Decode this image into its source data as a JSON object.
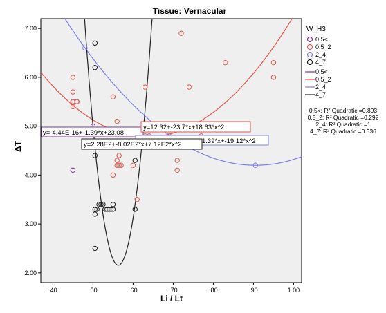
{
  "chart_data": {
    "type": "scatter",
    "title": "Tissue: Vernacular",
    "xlabel": "Li / Lt",
    "ylabel": "ΔT",
    "xlim": [
      0.37,
      1.02
    ],
    "ylim": [
      1.8,
      7.2
    ],
    "x_ticks": [
      ".40",
      ".50",
      ".60",
      ".70",
      ".80",
      ".90",
      "1.00"
    ],
    "y_ticks": [
      "2.00",
      "3.00",
      "4.00",
      "5.00",
      "6.00",
      "7.00"
    ],
    "x_tick_values": [
      0.4,
      0.5,
      0.6,
      0.7,
      0.8,
      0.9,
      1.0
    ],
    "y_tick_values": [
      2,
      3,
      4,
      5,
      6,
      7
    ],
    "background": "#efefef",
    "legend": {
      "title": "W_H3",
      "position": "right",
      "marker_items": [
        {
          "label": "0.5<",
          "color": "#7a3a9a"
        },
        {
          "label": "0.5_2",
          "color": "#e8534a"
        },
        {
          "label": "2_4",
          "color": "#7b7ff0"
        },
        {
          "label": "4_7",
          "color": "#222222"
        }
      ],
      "line_items": [
        {
          "label": "0.5<",
          "color": "#7a3a9a"
        },
        {
          "label": "0.5_2",
          "color": "#e8534a"
        },
        {
          "label": "2_4",
          "color": "#7b7ff0"
        },
        {
          "label": "4_7",
          "color": "#222222"
        }
      ],
      "r2_lines": [
        "0.5<: R² Quadratic =0.893",
        "0.5_2: R² Quadratic =0.292",
        "2_4: R² Quadratic =1",
        "4_7: R² Quadratic =0.336"
      ]
    },
    "series": [
      {
        "name": "0.5<",
        "color": "#7a3a9a",
        "points": [
          [
            0.45,
            4.1
          ],
          [
            0.45,
            5.5
          ],
          [
            0.46,
            5.5
          ],
          [
            0.5,
            5.0
          ]
        ],
        "fit": {
          "a": 23.08,
          "b": -1.39,
          "c": -4.44e-16
        }
      },
      {
        "name": "0.5_2",
        "color": "#e8534a",
        "points": [
          [
            0.45,
            6.0
          ],
          [
            0.45,
            5.7
          ],
          [
            0.45,
            5.5
          ],
          [
            0.45,
            5.4
          ],
          [
            0.46,
            5.5
          ],
          [
            0.55,
            5.6
          ],
          [
            0.55,
            4.0
          ],
          [
            0.56,
            5.1
          ],
          [
            0.56,
            4.3
          ],
          [
            0.56,
            4.2
          ],
          [
            0.565,
            4.4
          ],
          [
            0.565,
            4.2
          ],
          [
            0.57,
            4.2
          ],
          [
            0.6,
            4.2
          ],
          [
            0.61,
            3.5
          ],
          [
            0.63,
            5.8
          ],
          [
            0.63,
            4.8
          ],
          [
            0.64,
            4.8
          ],
          [
            0.64,
            4.7
          ],
          [
            0.69,
            4.8
          ],
          [
            0.71,
            4.3
          ],
          [
            0.71,
            4.1
          ],
          [
            0.72,
            6.9
          ],
          [
            0.74,
            5.8
          ],
          [
            0.77,
            4.8
          ],
          [
            0.83,
            6.3
          ],
          [
            0.95,
            6.3
          ],
          [
            0.95,
            6.0
          ]
        ],
        "fit": {
          "a": 12.32,
          "b": -23.7,
          "c": 18.63
        }
      },
      {
        "name": "2_4",
        "color": "#7b7ff0",
        "points": [
          [
            0.48,
            6.6
          ],
          [
            0.905,
            4.2
          ]
        ],
        "fit": {
          "a": 13.6857,
          "b": -11.82,
          "c": -1.39,
          "d": -19.12
        }
      },
      {
        "name": "4_7",
        "color": "#222222",
        "points": [
          [
            0.505,
            6.7
          ],
          [
            0.505,
            6.2
          ],
          [
            0.505,
            4.4
          ],
          [
            0.505,
            3.3
          ],
          [
            0.505,
            3.2
          ],
          [
            0.505,
            2.5
          ],
          [
            0.51,
            3.3
          ],
          [
            0.515,
            3.4
          ],
          [
            0.52,
            3.4
          ],
          [
            0.525,
            3.4
          ],
          [
            0.53,
            3.3
          ],
          [
            0.535,
            3.3
          ],
          [
            0.54,
            3.3
          ],
          [
            0.545,
            3.3
          ],
          [
            0.55,
            3.3
          ],
          [
            0.55,
            3.4
          ],
          [
            0.605,
            3.3
          ],
          [
            0.605,
            4.3
          ]
        ],
        "fit": {
          "a": 228,
          "b": -802,
          "c": 712
        }
      }
    ],
    "annotations": [
      {
        "text": "y=-4.44E-16+-1.39*x+23.08",
        "color": "#7a3a9a"
      },
      {
        "text": "y=12.32+-23.7*x+18.63*x^2",
        "color": "#e8534a"
      },
      {
        "text": "1.39*x+-19.12*x^2",
        "color": "#7b7ff0"
      },
      {
        "text": "y=2.28E2+-8.02E2*x+7.12E2*x^2",
        "color": "#222222"
      }
    ]
  }
}
